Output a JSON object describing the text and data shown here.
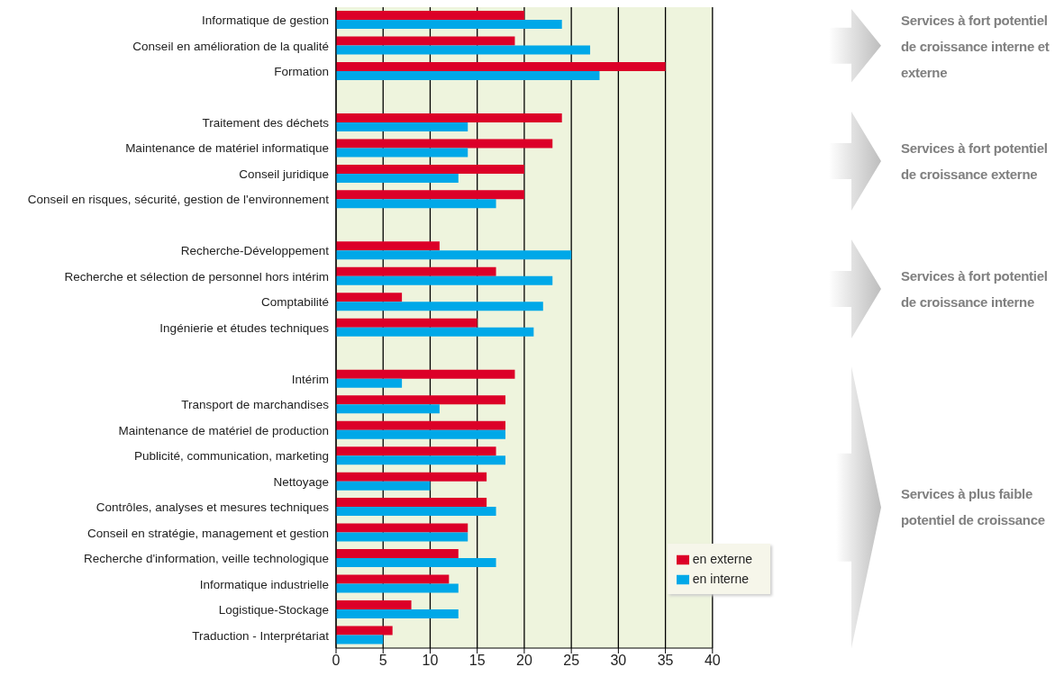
{
  "chart_data": {
    "type": "bar",
    "orientation": "horizontal",
    "categories": [
      "Informatique de gestion",
      "Conseil en amélioration de la qualité",
      "Formation",
      null,
      "Traitement des déchets",
      "Maintenance de matériel informatique",
      "Conseil juridique",
      "Conseil en risques, sécurité, gestion de l'environnement",
      null,
      "Recherche-Développement",
      "Recherche et sélection de personnel hors intérim",
      "Comptabilité",
      "Ingénierie et études techniques",
      null,
      "Intérim",
      "Transport de marchandises",
      "Maintenance de matériel de production",
      "Publicité, communication, marketing",
      "Nettoyage",
      "Contrôles, analyses et mesures techniques",
      "Conseil en stratégie, management et gestion",
      "Recherche d'information, veille technologique",
      "Informatique industrielle",
      "Logistique-Stockage",
      "Traduction - Interprétariat"
    ],
    "series": [
      {
        "name": "en externe",
        "color": "#dc0028",
        "values": [
          20,
          19,
          35,
          null,
          24,
          23,
          20,
          20,
          null,
          11,
          17,
          7,
          15,
          null,
          19,
          18,
          18,
          17,
          16,
          16,
          14,
          13,
          12,
          8,
          6
        ]
      },
      {
        "name": "en interne",
        "color": "#00a8e8",
        "values": [
          24,
          27,
          28,
          null,
          14,
          14,
          13,
          17,
          null,
          25,
          23,
          22,
          21,
          null,
          7,
          11,
          18,
          18,
          10,
          17,
          14,
          17,
          13,
          13,
          5
        ]
      }
    ],
    "xlim": [
      0,
      40
    ],
    "xticks": [
      0,
      5,
      10,
      15,
      20,
      25,
      30,
      35,
      40
    ],
    "grid": "x",
    "legend": "bottom right",
    "annotations": [
      "Services à fort potentiel de croissance interne et externe",
      "Services à fort potentiel de croissance externe",
      "Services à fort potentiel de croissance interne",
      "Services à plus faible potentiel de croissance"
    ]
  }
}
